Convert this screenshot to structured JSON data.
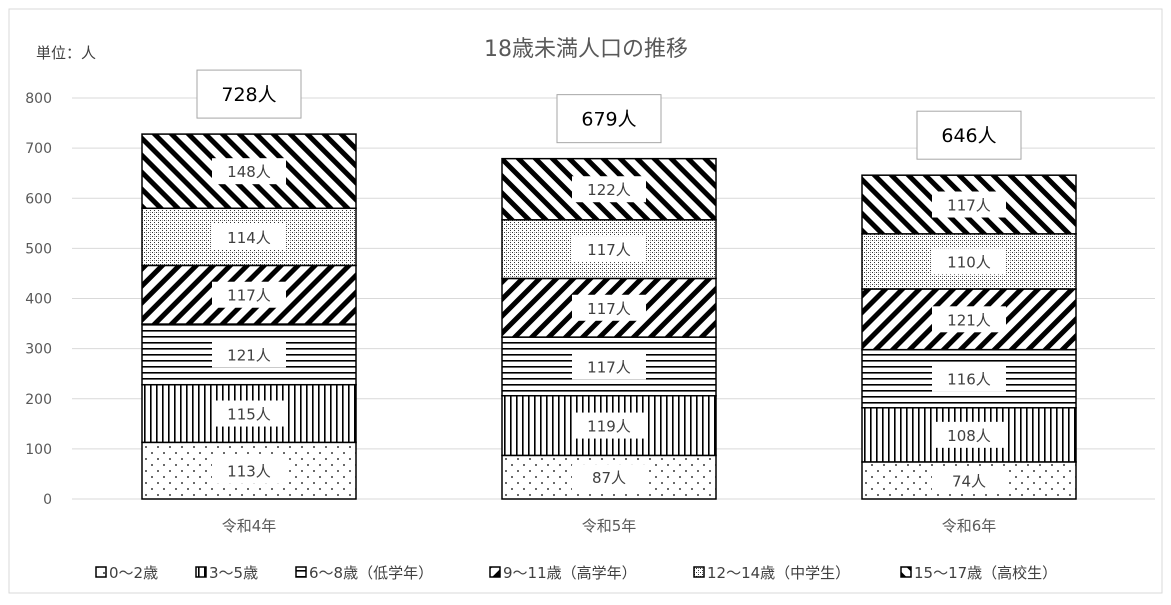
{
  "chart_data": {
    "type": "bar",
    "stacked": true,
    "title": "18歳未満人口の推移",
    "unit_label": "単位：人",
    "categories": [
      "令和4年",
      "令和5年",
      "令和6年"
    ],
    "yticks": [
      0,
      100,
      200,
      300,
      400,
      500,
      600,
      700,
      800
    ],
    "ylim": [
      0,
      800
    ],
    "grid": true,
    "legend_position": "bottom",
    "series": [
      {
        "name": "0～2歳",
        "values": [
          113,
          87,
          74
        ],
        "labels": [
          "113人",
          "87人",
          "74人"
        ]
      },
      {
        "name": "3～5歳",
        "values": [
          115,
          119,
          108
        ],
        "labels": [
          "115人",
          "119人",
          "108人"
        ]
      },
      {
        "name": "6～8歳（低学年）",
        "values": [
          121,
          117,
          116
        ],
        "labels": [
          "121人",
          "117人",
          "116人"
        ]
      },
      {
        "name": "9～11歳（高学年）",
        "values": [
          117,
          117,
          121
        ],
        "labels": [
          "117人",
          "117人",
          "121人"
        ]
      },
      {
        "name": "12～14歳（中学生）",
        "values": [
          114,
          117,
          110
        ],
        "labels": [
          "114人",
          "117人",
          "110人"
        ]
      },
      {
        "name": "15～17歳（高校生）",
        "values": [
          148,
          122,
          117
        ],
        "labels": [
          "148人",
          "122人",
          "117人"
        ]
      }
    ],
    "totals": [
      728,
      679,
      646
    ],
    "total_labels": [
      "728人",
      "679人",
      "646人"
    ],
    "colors": {
      "text": "#595959",
      "grid": "#d9d9d9",
      "bar_edge": "#000000"
    }
  }
}
